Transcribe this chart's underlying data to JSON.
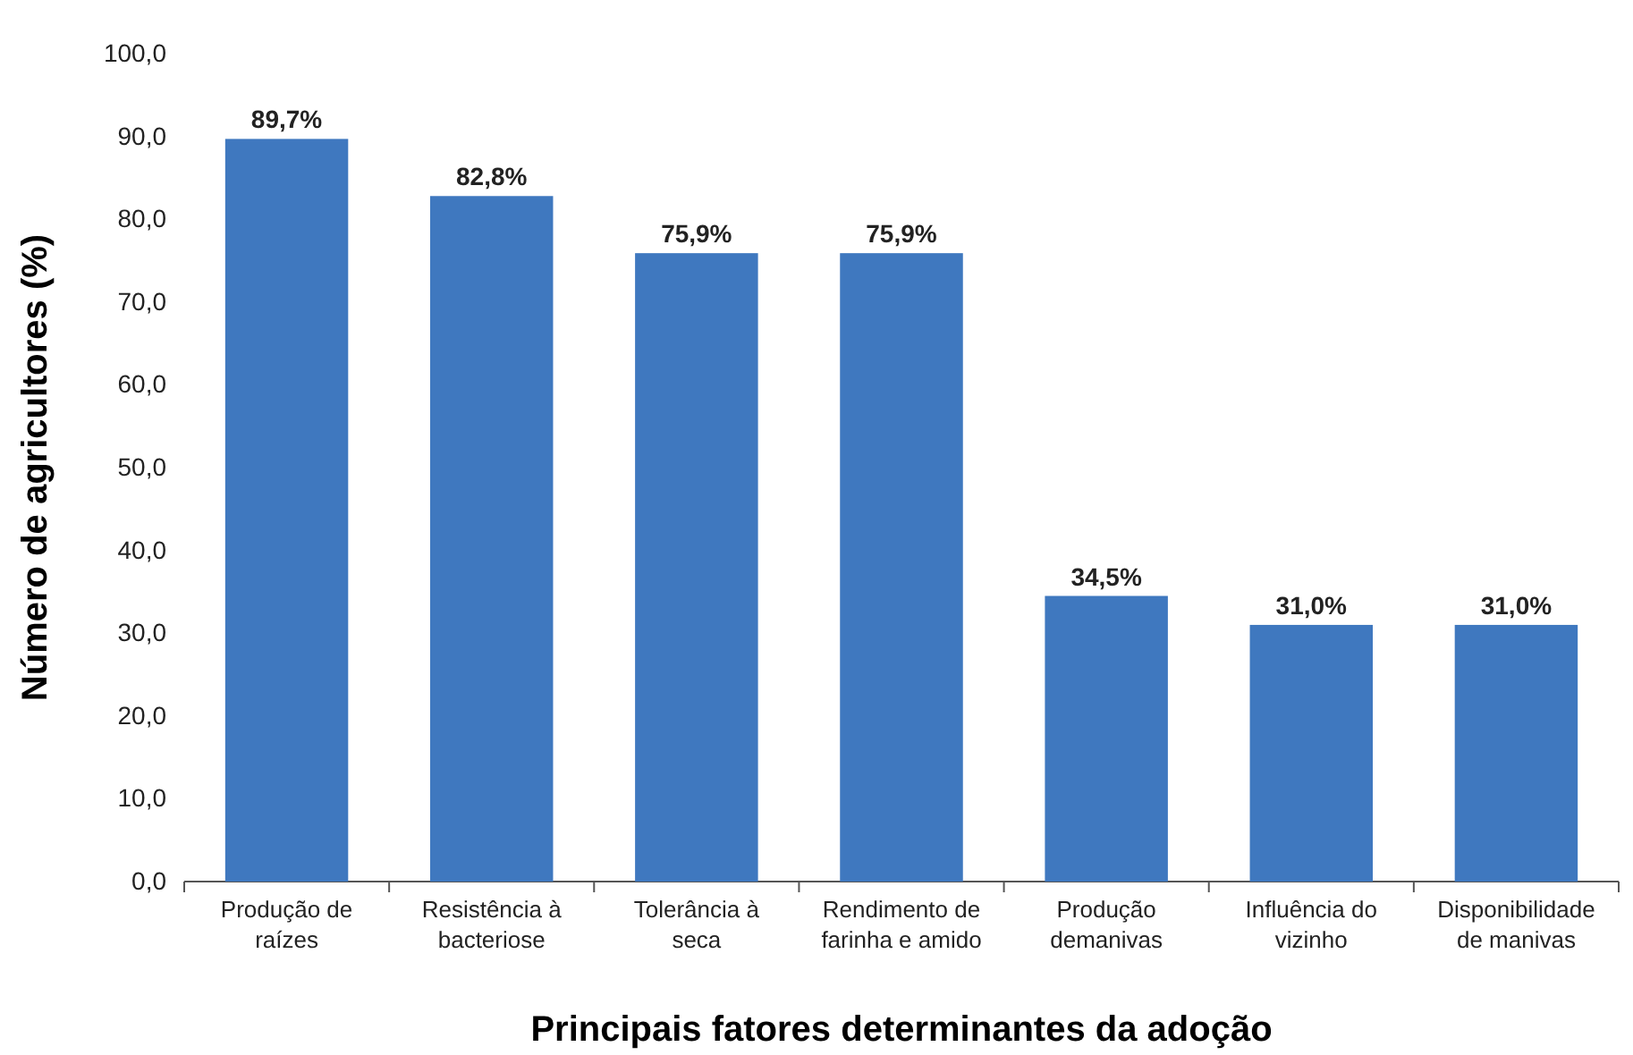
{
  "chart_data": {
    "type": "bar",
    "xlabel": "Principais fatores determinantes da adoção",
    "ylabel": "Número de agricultores (%)",
    "categories": [
      "Produção de raízes",
      "Resistência à bacteriose",
      "Tolerância à seca",
      "Rendimento de farinha e amido",
      "Produção demanivas",
      "Influência do vizinho",
      "Disponibilidade de manivas"
    ],
    "values": [
      89.7,
      82.8,
      75.9,
      75.9,
      34.5,
      31.0,
      31.0
    ],
    "value_labels": [
      "89,7%",
      "82,8%",
      "75,9%",
      "75,9%",
      "34,5%",
      "31,0%",
      "31,0%"
    ],
    "color": "#3f78bf",
    "ylim": [
      0,
      100
    ],
    "yticks": [
      {
        "value": 0,
        "label": "0,0"
      },
      {
        "value": 10,
        "label": "10,0"
      },
      {
        "value": 20,
        "label": "20,0"
      },
      {
        "value": 30,
        "label": "30,0"
      },
      {
        "value": 40,
        "label": "40,0"
      },
      {
        "value": 50,
        "label": "50,0"
      },
      {
        "value": 60,
        "label": "60,0"
      },
      {
        "value": 70,
        "label": "70,0"
      },
      {
        "value": 80,
        "label": "80,0"
      },
      {
        "value": 90,
        "label": "90,0"
      },
      {
        "value": 100,
        "label": "100,0"
      }
    ],
    "grid": false
  }
}
